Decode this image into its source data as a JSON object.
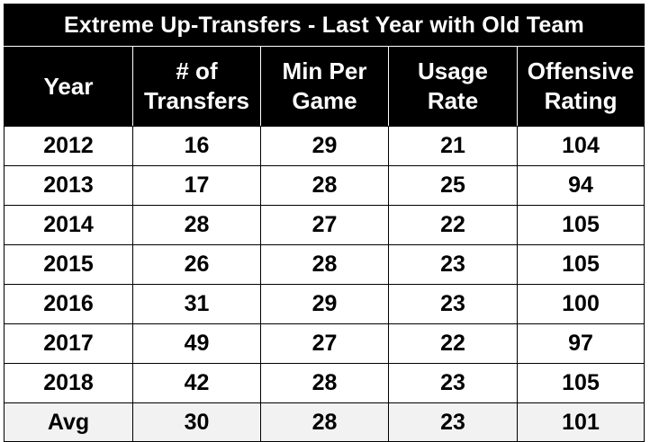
{
  "table": {
    "title": "Extreme Up-Transfers - Last Year with Old Team",
    "headers": [
      {
        "line1": "Year",
        "line2": ""
      },
      {
        "line1": "# of",
        "line2": "Transfers"
      },
      {
        "line1": "Min Per",
        "line2": "Game"
      },
      {
        "line1": "Usage",
        "line2": "Rate"
      },
      {
        "line1": "Offensive",
        "line2": "Rating"
      }
    ],
    "rows": [
      [
        "2012",
        "16",
        "29",
        "21",
        "104"
      ],
      [
        "2013",
        "17",
        "28",
        "25",
        "94"
      ],
      [
        "2014",
        "28",
        "27",
        "22",
        "105"
      ],
      [
        "2015",
        "26",
        "28",
        "23",
        "105"
      ],
      [
        "2016",
        "31",
        "29",
        "23",
        "100"
      ],
      [
        "2017",
        "49",
        "27",
        "22",
        "97"
      ],
      [
        "2018",
        "42",
        "28",
        "23",
        "105"
      ]
    ],
    "average": [
      "Avg",
      "30",
      "28",
      "23",
      "101"
    ]
  }
}
